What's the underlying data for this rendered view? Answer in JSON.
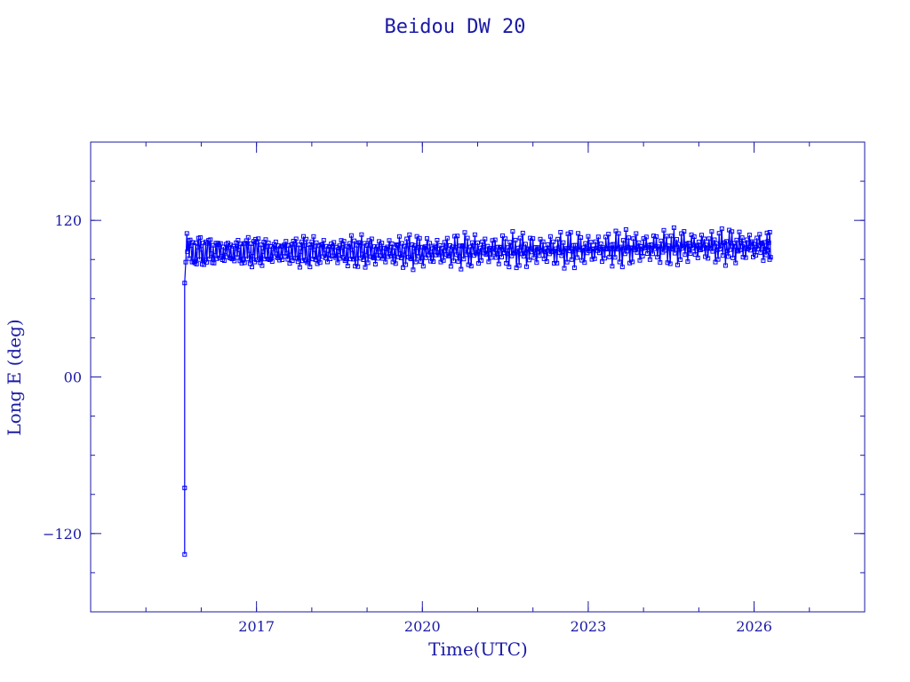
{
  "chart_data": {
    "type": "line",
    "title": "Beidou DW 20",
    "xlabel": "Time(UTC)",
    "ylabel": "Long E (deg)",
    "x_range": [
      2014.0,
      2028.0
    ],
    "ylim": [
      -180,
      180
    ],
    "x_ticks": [
      {
        "value": 2017,
        "label": "2017"
      },
      {
        "value": 2020,
        "label": "2020"
      },
      {
        "value": 2023,
        "label": "2023"
      },
      {
        "value": 2026,
        "label": "2026"
      }
    ],
    "y_ticks": [
      {
        "value": 120,
        "label": "120"
      },
      {
        "value": 0,
        "label": "00"
      },
      {
        "value": -120,
        "label": "−120"
      }
    ],
    "x_minor_step": 1,
    "y_minor_step": 30,
    "grid": false,
    "marker": "square",
    "color": "#0000ff",
    "series": [
      {
        "initial_points": [
          {
            "x": 2015.7,
            "y": -136
          },
          {
            "x": 2015.7,
            "y": -85
          },
          {
            "x": 2015.7,
            "y": 72
          },
          {
            "x": 2015.72,
            "y": 88
          },
          {
            "x": 2015.74,
            "y": 110
          }
        ],
        "band": {
          "x_start": 2015.75,
          "x_end": 2026.3,
          "center": [
            {
              "x": 2016.0,
              "y": 96
            },
            {
              "x": 2017.0,
              "y": 96
            },
            {
              "x": 2018.0,
              "y": 96
            },
            {
              "x": 2019.0,
              "y": 96
            },
            {
              "x": 2020.0,
              "y": 96
            },
            {
              "x": 2021.0,
              "y": 97
            },
            {
              "x": 2022.0,
              "y": 97
            },
            {
              "x": 2023.0,
              "y": 98
            },
            {
              "x": 2024.0,
              "y": 99
            },
            {
              "x": 2025.0,
              "y": 100
            },
            {
              "x": 2026.0,
              "y": 100
            }
          ],
          "half_width": 15,
          "samples_per_year": 60
        },
        "final_points": [
          {
            "x": 2026.2,
            "y": 98
          },
          {
            "x": 2026.25,
            "y": 104
          },
          {
            "x": 2026.28,
            "y": 90
          }
        ]
      }
    ]
  }
}
